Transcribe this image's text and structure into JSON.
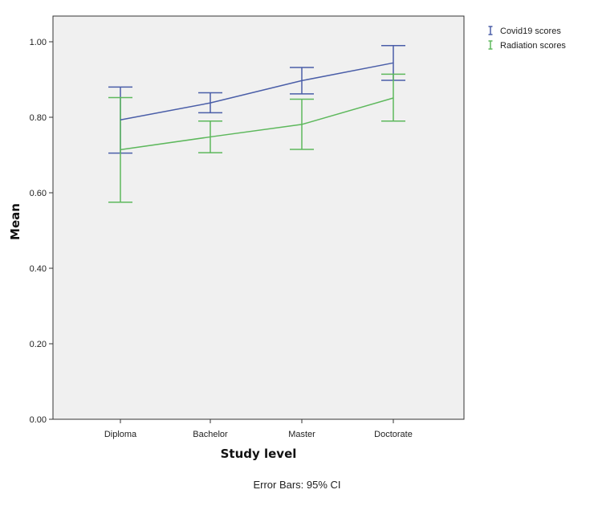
{
  "chart_data": {
    "type": "line",
    "title": "",
    "xlabel": "Study level",
    "ylabel": "Mean",
    "categories": [
      "Diploma",
      "Bachelor",
      "Master",
      "Doctorate"
    ],
    "ylim": [
      0,
      1
    ],
    "yticks": [
      0,
      0.2,
      0.4,
      0.6,
      0.8,
      1.0
    ],
    "ytick_labels": [
      "0.00",
      "0.20",
      "0.40",
      "0.60",
      "0.80",
      "1.00"
    ],
    "grid": false,
    "legend_position": "top-right",
    "footnote": "Error Bars: 95% CI",
    "series": [
      {
        "name": "Covid19 scores",
        "color": "#4a5ea8",
        "values": [
          0.793,
          0.838,
          0.897,
          0.944
        ],
        "ci_low": [
          0.705,
          0.812,
          0.862,
          0.898
        ],
        "ci_high": [
          0.88,
          0.865,
          0.932,
          0.99
        ]
      },
      {
        "name": "Radiation scores",
        "color": "#5db85c",
        "values": [
          0.714,
          0.748,
          0.781,
          0.851
        ],
        "ci_low": [
          0.575,
          0.706,
          0.715,
          0.79
        ],
        "ci_high": [
          0.852,
          0.79,
          0.848,
          0.914
        ]
      }
    ]
  }
}
